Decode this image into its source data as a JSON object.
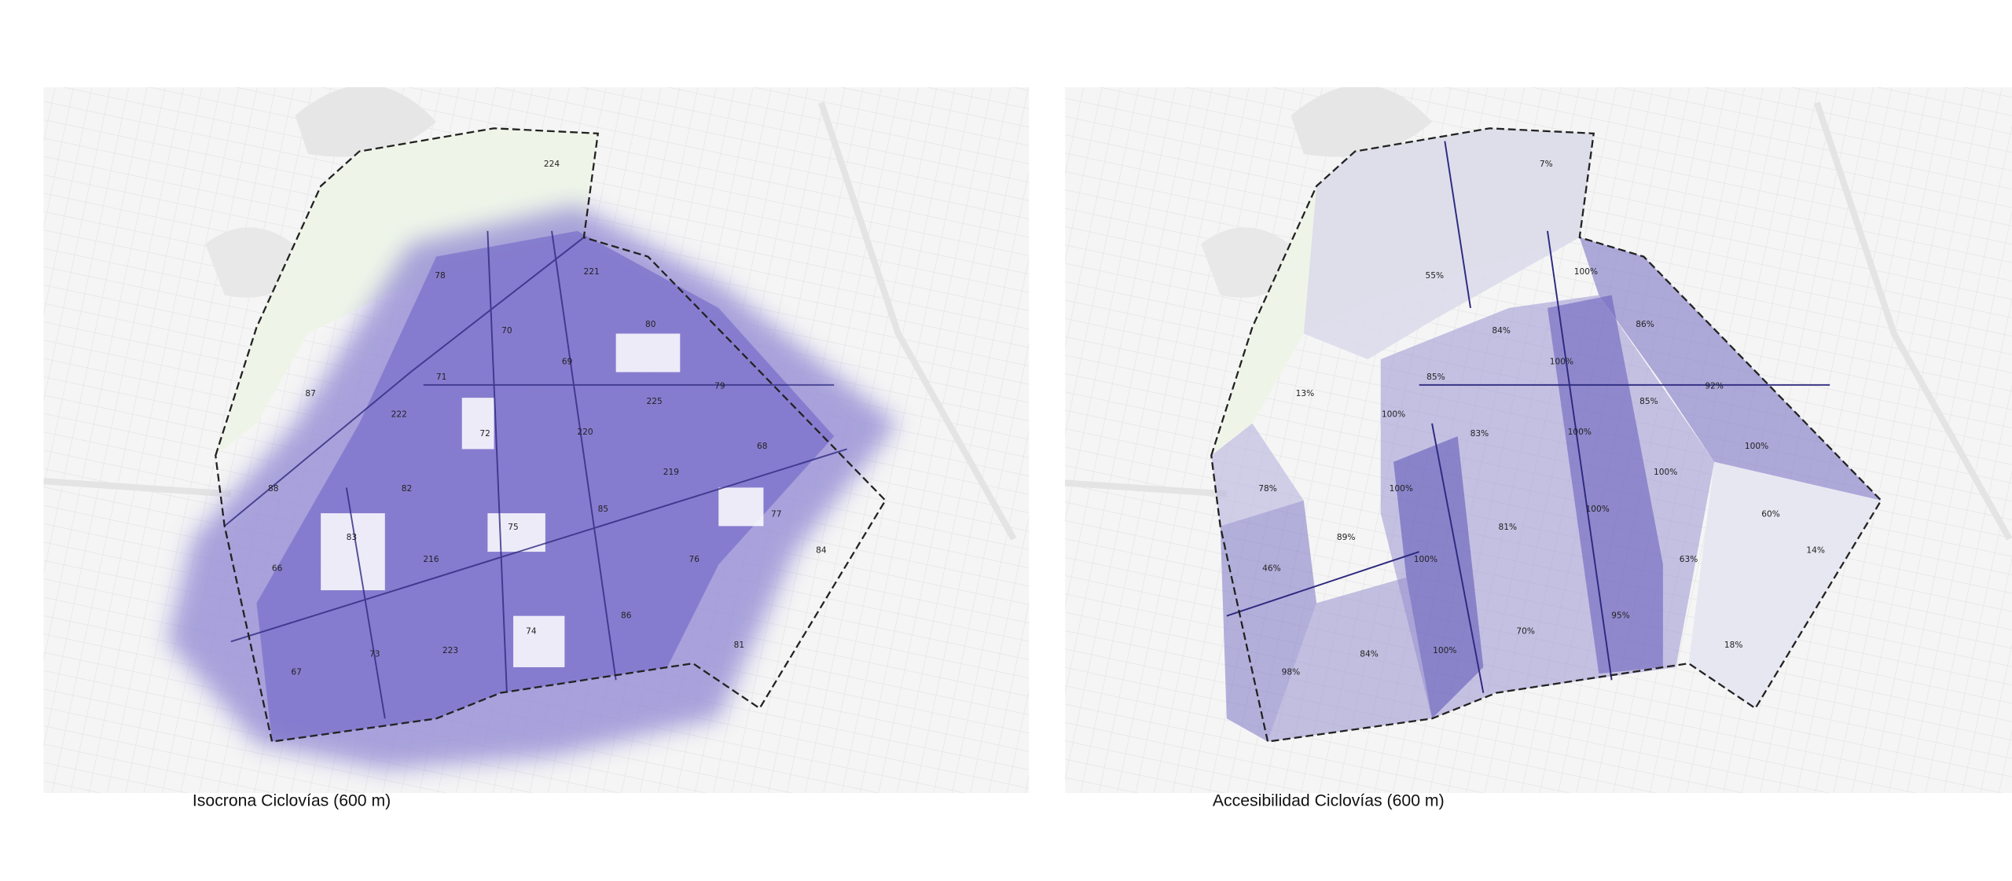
{
  "panels": [
    {
      "caption": "Isocrona Ciclovías (600 m)",
      "labels": [
        "224",
        "78",
        "221",
        "70",
        "80",
        "71",
        "69",
        "87",
        "222",
        "225",
        "79",
        "72",
        "220",
        "68",
        "88",
        "82",
        "219",
        "75",
        "85",
        "77",
        "66",
        "83",
        "216",
        "76",
        "84",
        "86",
        "74",
        "67",
        "73",
        "223",
        "81"
      ]
    },
    {
      "caption": "Accesibilidad Ciclovías (600 m)",
      "labels": [
        "7%",
        "55%",
        "100%",
        "84%",
        "86%",
        "85%",
        "100%",
        "13%",
        "100%",
        "85%",
        "92%",
        "83%",
        "100%",
        "100%",
        "78%",
        "100%",
        "100%",
        "81%",
        "100%",
        "60%",
        "46%",
        "89%",
        "100%",
        "63%",
        "14%",
        "95%",
        "70%",
        "98%",
        "84%",
        "100%",
        "18%"
      ]
    }
  ]
}
